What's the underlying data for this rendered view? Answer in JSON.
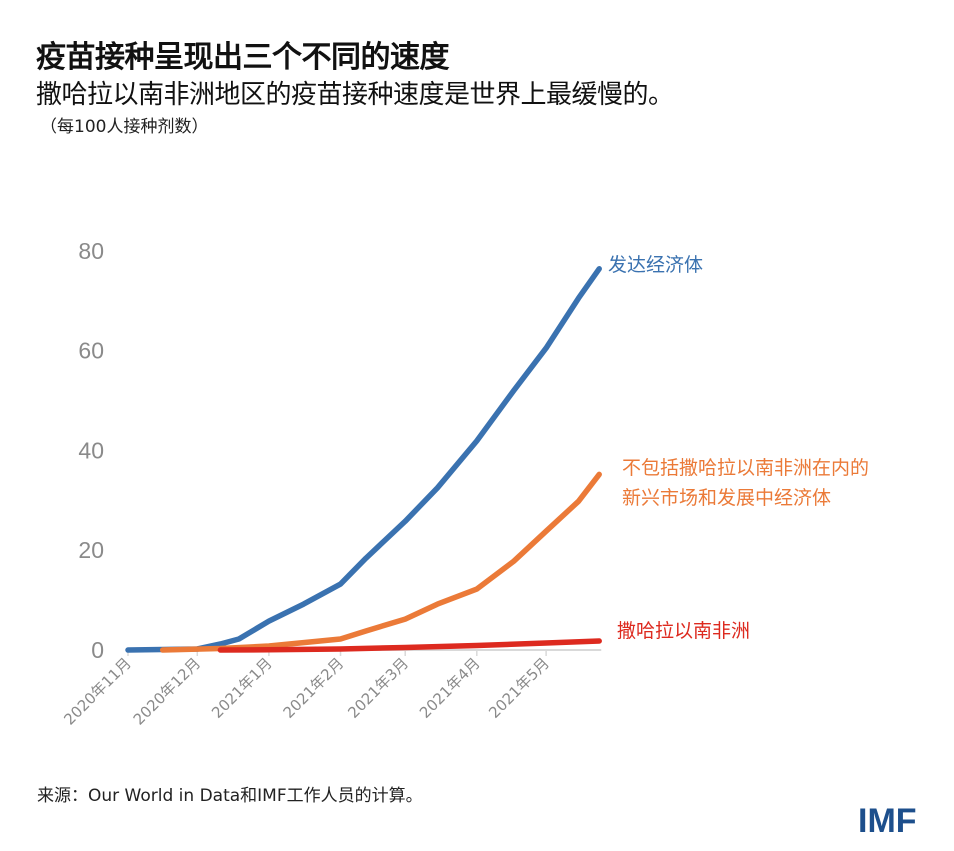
{
  "title": "疫苗接种呈现出三个不同的速度",
  "subtitle": "撒哈拉以南非洲地区的疫苗接种速度是世界上最缓慢的。",
  "unit": "（每100人接种剂数）",
  "source": "来源：Our World in Data和IMF工作人员的计算。",
  "logo": "IMF",
  "chart_data": {
    "type": "line",
    "title": "疫苗接种呈现出三个不同的速度",
    "ylabel": "（每100人接种剂数）",
    "ylim": [
      0,
      80
    ],
    "yticks": [
      "0",
      "20",
      "40",
      "60",
      "80"
    ],
    "ytick_values": [
      0,
      20,
      40,
      60,
      80
    ],
    "xlim": [
      "2020-11-01",
      "2021-05-24"
    ],
    "xticks": [
      "2020年11月",
      "2020年12月",
      "2021年1月",
      "2021年2月",
      "2021年3月",
      "2021年4月",
      "2021年5月"
    ],
    "xtick_dates": [
      "2020-11-01",
      "2020-12-01",
      "2021-01-01",
      "2021-02-01",
      "2021-03-01",
      "2021-04-01",
      "2021-05-01"
    ],
    "grid": false,
    "legend": "inline labels at line ends",
    "series": [
      {
        "name": "发达经济体",
        "label_lines": [
          "发达经济体"
        ],
        "color": "#3a72b0",
        "x": [
          "2020-11-01",
          "2020-12-01",
          "2020-12-11",
          "2020-12-19",
          "2021-01-01",
          "2021-01-16",
          "2021-02-01",
          "2021-02-12",
          "2021-03-01",
          "2021-03-15",
          "2021-04-01",
          "2021-04-17",
          "2021-05-01",
          "2021-05-15",
          "2021-05-24"
        ],
        "y": [
          0,
          0.2,
          1.2,
          2.2,
          5.8,
          9.2,
          13.2,
          18.4,
          25.8,
          32.5,
          41.9,
          52,
          60.5,
          70.5,
          76.4
        ]
      },
      {
        "name": "不包括撒哈拉以南非洲在内的新兴市场和发展中经济体",
        "label_lines": [
          "不包括撒哈拉以南非洲在内的",
          "新兴市场和发展中经济体"
        ],
        "color": "#eb7a38",
        "x": [
          "2020-11-16",
          "2020-12-11",
          "2021-01-01",
          "2021-02-01",
          "2021-02-12",
          "2021-03-01",
          "2021-03-15",
          "2021-04-01",
          "2021-04-17",
          "2021-05-01",
          "2021-05-15",
          "2021-05-24"
        ],
        "y": [
          0,
          0.3,
          0.8,
          2.2,
          3.8,
          6.2,
          9.2,
          12.2,
          17.8,
          23.8,
          29.8,
          35.2
        ]
      },
      {
        "name": "撒哈拉以南非洲",
        "label_lines": [
          "撒哈拉以南非洲"
        ],
        "color": "#dd2a1f",
        "x": [
          "2020-12-11",
          "2021-01-01",
          "2021-02-01",
          "2021-03-01",
          "2021-04-01",
          "2021-05-01",
          "2021-05-24"
        ],
        "y": [
          0,
          0.05,
          0.2,
          0.5,
          0.9,
          1.4,
          1.8
        ]
      }
    ]
  }
}
